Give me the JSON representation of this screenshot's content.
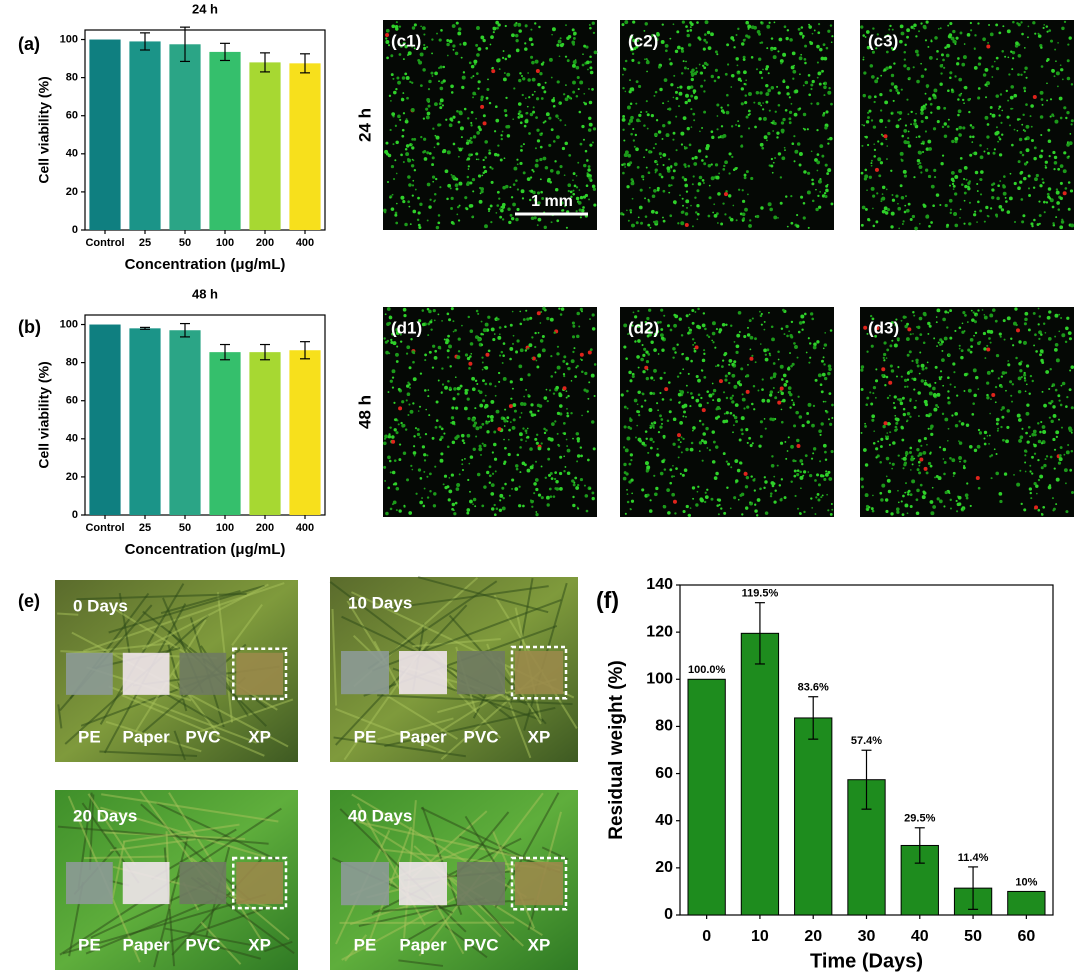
{
  "chart_data": [
    {
      "type": "bar",
      "panel_label": "(a)",
      "title": "24 h",
      "x_label": "Concentration (μg/mL)",
      "y_label": "Cell viability (%)",
      "categories": [
        "Control",
        "25",
        "50",
        "100",
        "200",
        "400"
      ],
      "values": [
        100,
        99,
        97.5,
        93.5,
        88,
        87.5
      ],
      "errors": [
        0,
        4.5,
        9,
        4.5,
        5,
        5
      ],
      "colors": [
        "#0f7f80",
        "#1b9488",
        "#2ba586",
        "#35bf6c",
        "#a7d832",
        "#f7e01c"
      ],
      "ylim": [
        0,
        105
      ],
      "yticks": [
        0,
        20,
        40,
        60,
        80,
        100
      ]
    },
    {
      "type": "bar",
      "panel_label": "(b)",
      "title": "48 h",
      "x_label": "Concentration (μg/mL)",
      "y_label": "Cell viability (%)",
      "categories": [
        "Control",
        "25",
        "50",
        "100",
        "200",
        "400"
      ],
      "values": [
        100,
        98,
        97,
        85.5,
        85.5,
        86.5
      ],
      "errors": [
        0,
        0.5,
        3.5,
        4,
        4,
        4.5
      ],
      "colors": [
        "#0f7f80",
        "#1b9488",
        "#2ba586",
        "#35bf6c",
        "#a7d832",
        "#f7e01c"
      ],
      "ylim": [
        0,
        105
      ],
      "yticks": [
        0,
        20,
        40,
        60,
        80,
        100
      ]
    },
    {
      "type": "bar",
      "panel_label": "(f)",
      "x_label": "Time (Days)",
      "y_label": "Residual weight (%)",
      "categories": [
        "0",
        "10",
        "20",
        "30",
        "40",
        "50",
        "60"
      ],
      "values": [
        100,
        119.5,
        83.6,
        57.4,
        29.5,
        11.4,
        10
      ],
      "errors": [
        0,
        13,
        9,
        12.5,
        7.5,
        9,
        0
      ],
      "value_labels": [
        "100.0%",
        "119.5%",
        "83.6%",
        "57.4%",
        "29.5%",
        "11.4%",
        "10%"
      ],
      "color": "#1e8c1e",
      "ylim": [
        0,
        140
      ],
      "yticks": [
        0,
        20,
        40,
        60,
        80,
        100,
        120,
        140
      ]
    }
  ],
  "micrographs": {
    "row_labels": [
      "24 h",
      "48 h"
    ],
    "panels": [
      "(c1)",
      "(c2)",
      "(c3)",
      "(d1)",
      "(d2)",
      "(d3)"
    ],
    "scale_bar": "1 mm"
  },
  "photos": {
    "panel_label": "(e)",
    "panels": [
      {
        "title": "0 Days",
        "samples": [
          "PE",
          "Paper",
          "PVC",
          "XP"
        ]
      },
      {
        "title": "10 Days",
        "samples": [
          "PE",
          "Paper",
          "PVC",
          "XP"
        ]
      },
      {
        "title": "20 Days",
        "samples": [
          "PE",
          "Paper",
          "PVC",
          "XP"
        ]
      },
      {
        "title": "40 Days",
        "samples": [
          "PE",
          "Paper",
          "PVC",
          "XP"
        ]
      }
    ]
  }
}
